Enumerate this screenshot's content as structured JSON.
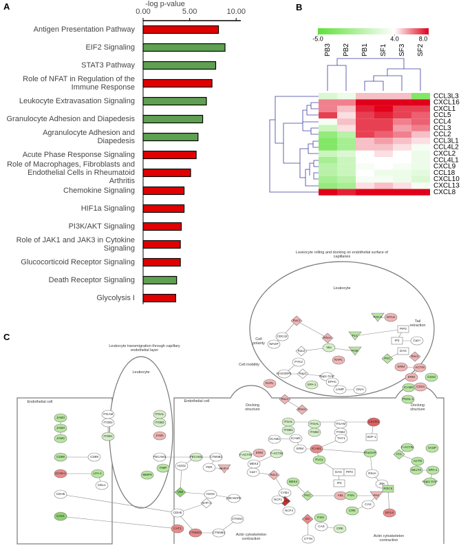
{
  "panel_labels": [
    "A",
    "B",
    "C"
  ],
  "chart_data": [
    {
      "type": "bar",
      "orientation": "horizontal",
      "xlabel": "-log p-value",
      "categories": [
        "Antigen Presentation Pathway",
        "EIF2 Signaling",
        "STAT3 Pathway",
        "Role of NFAT in Regulation of the Immune Response",
        "Leukocyte Extravasation Signaling",
        "Granulocyte Adhesion and Diapedesis",
        "Agranulocyte Adhesion and Diapedesis",
        "Acute Phase Response Signaling",
        "Role of Macrophages, Fibroblasts and Endothelial Cells in Rheumatoid Arthritis",
        "Chemokine Signaling",
        "HIF1a Signaling",
        "PI3K/AKT Signaling",
        "Role of JAK1 and JAK3 in Cytokine Signaling",
        "Glucocorticoid Receptor Signaling",
        "Death Receptor Signaling",
        "Glycolysis I"
      ],
      "values": [
        8.1,
        8.8,
        7.8,
        7.4,
        6.8,
        6.4,
        5.9,
        5.7,
        5.1,
        4.4,
        4.4,
        4.1,
        4.0,
        4.0,
        3.6,
        3.5
      ],
      "colors": [
        "#e00000",
        "#5fa052",
        "#5fa052",
        "#e00000",
        "#5fa052",
        "#5fa052",
        "#5fa052",
        "#e00000",
        "#e00000",
        "#e00000",
        "#e00000",
        "#e00000",
        "#e00000",
        "#e00000",
        "#5fa052",
        "#e00000"
      ],
      "xlim": [
        0,
        10.5
      ],
      "xticks": [
        {
          "value": 0,
          "label": "0.00"
        },
        {
          "value": 5,
          "label": "5.00"
        },
        {
          "value": 10,
          "label": "10.00"
        }
      ]
    },
    {
      "type": "heatmap",
      "x": [
        "PB3",
        "PB2",
        "PB1",
        "SF1",
        "SF3",
        "SF2"
      ],
      "y": [
        "CCL3L3",
        "CXCL16",
        "CXCL1",
        "CCL5",
        "CCL4",
        "CCL3",
        "CCL2",
        "CCL3L1",
        "CCL4L2",
        "CXCL2",
        "CCL4L1",
        "CXCL9",
        "CCL18",
        "CXCL10",
        "CXCL13",
        "CXCL8"
      ],
      "values": [
        [
          2,
          3,
          5,
          5,
          5,
          -3
        ],
        [
          6,
          6,
          8,
          8,
          8,
          8
        ],
        [
          6,
          5,
          7.5,
          8,
          7,
          7
        ],
        [
          7,
          4.5,
          7,
          7.5,
          7,
          6.5
        ],
        [
          3.5,
          5,
          7,
          7,
          6,
          6.5
        ],
        [
          1,
          4.5,
          7,
          7,
          5.5,
          6
        ],
        [
          -2,
          0,
          7,
          6.5,
          6,
          5
        ],
        [
          -3,
          -1,
          5,
          5.5,
          5,
          4.5
        ],
        [
          -3,
          -1,
          5,
          5,
          4.5,
          3.5
        ],
        [
          1,
          2,
          4,
          4.5,
          4,
          3
        ],
        [
          -1,
          1,
          4,
          4,
          4,
          3
        ],
        [
          0,
          1,
          3.5,
          4,
          3.5,
          3
        ],
        [
          0,
          1,
          4,
          3,
          3,
          2.5
        ],
        [
          -1,
          0,
          3.5,
          3.5,
          3,
          2
        ],
        [
          -2,
          -1,
          4.5,
          5,
          4.5,
          3.5
        ],
        [
          8,
          7.5,
          8,
          8,
          8,
          8
        ]
      ],
      "colors": [
        "#5fe03a",
        "#ffffff",
        "#e0001a"
      ],
      "clim": [
        -5,
        8
      ],
      "cticks": [
        {
          "value": -5,
          "label": "-5.0"
        },
        {
          "value": 4,
          "label": "4.0"
        },
        {
          "value": 8,
          "label": "8.0"
        }
      ]
    }
  ],
  "diagram": {
    "texts": [
      "Leukocyte rolling and docking on endothelial surface of capillaries",
      "Leukocyte transmigration through capillary endothelial layer",
      "Leukocyte",
      "Leukocyte",
      "Endothelial cell",
      "Endothelial cell",
      "Docking structure",
      "Docking structure",
      "Cell polarity",
      "Cell mobility",
      "Tail retraction",
      "Actin cytoskeleton contraction",
      "Actin cytoskeleton contraction"
    ],
    "nodes": [
      {
        "label": "JAM3",
        "color": "#b7e6a0"
      },
      {
        "label": "JAM3",
        "color": "#b7e6a0"
      },
      {
        "label": "JAM2",
        "color": "#b7e6a0"
      },
      {
        "label": "ITGAM",
        "color": "#ffffff"
      },
      {
        "label": "ITGB2",
        "color": "#ffffff"
      },
      {
        "label": "ITGB1",
        "color": "#d6f0c8"
      },
      {
        "label": "CD99",
        "color": "#b7e6a0"
      },
      {
        "label": "CD99",
        "color": "#ffffff"
      },
      {
        "label": "ICAM-1",
        "color": "#e98a8a"
      },
      {
        "label": "LFA-1",
        "color": "#b7e6a0"
      },
      {
        "label": "DEL1",
        "color": "#ffffff"
      },
      {
        "label": "CDH5",
        "color": "#ffffff"
      },
      {
        "label": "CAV1",
        "color": "#8fd170"
      },
      {
        "label": "ITGAL",
        "color": "#d6f0c8"
      },
      {
        "label": "ITGB2",
        "color": "#d6f0c8"
      },
      {
        "label": "JAM1",
        "color": "#f0b5b5"
      },
      {
        "label": "PECAM1",
        "color": "#ffffff"
      },
      {
        "label": "TIMP",
        "color": "#b7e6a0"
      },
      {
        "label": "MMP9",
        "color": "#b7e6a0"
      },
      {
        "label": "PECAM1",
        "color": "#d6f0c8"
      },
      {
        "label": "CTNNB1",
        "color": "#ffffff"
      },
      {
        "label": "FER",
        "color": "#ffffff"
      },
      {
        "label": "BHP-2",
        "color": "#f0b5b5"
      },
      {
        "label": "H2O2",
        "color": "#ffffff"
      },
      {
        "label": "VIM",
        "color": "#8fd170"
      },
      {
        "label": "H2O2",
        "color": "#ffffff"
      },
      {
        "label": "SHP-2",
        "color": "#ffffff"
      },
      {
        "label": "p38 MAPK",
        "color": "#ffffff"
      },
      {
        "label": "CDH5",
        "color": "#ffffff"
      },
      {
        "label": "CAT1",
        "color": "#e98a8a"
      },
      {
        "label": "CTNND1",
        "color": "#e98a8a"
      },
      {
        "label": "CTNNB1",
        "color": "#ffffff"
      },
      {
        "label": "CTNNA",
        "color": "#ffffff"
      },
      {
        "label": "Rac1",
        "color": "#f0b5b5"
      },
      {
        "label": "CDC42",
        "color": "#ffffff"
      },
      {
        "label": "RhoA",
        "color": "#f0b5b5"
      },
      {
        "label": "ROCK",
        "color": "#b7e6a0"
      },
      {
        "label": "MYL6",
        "color": "#f0b5b5"
      },
      {
        "label": "PIP2",
        "color": "#ffffff"
      },
      {
        "label": "IP3",
        "color": "#ffffff"
      },
      {
        "label": "Ca2+",
        "color": "#ffffff"
      },
      {
        "label": "PLC",
        "color": "#b7e6a0"
      },
      {
        "label": "DAG",
        "color": "#ffffff"
      },
      {
        "label": "Rac1",
        "color": "#f0b5b5"
      },
      {
        "label": "WASP",
        "color": "#ffffff"
      },
      {
        "label": "Rac2",
        "color": "#ffffff"
      },
      {
        "label": "Vav",
        "color": "#d6f0c8"
      },
      {
        "label": "PI3K",
        "color": "#b7e6a0"
      },
      {
        "label": "PKC",
        "color": "#b7e6a0"
      },
      {
        "label": "PYK2",
        "color": "#ffffff"
      },
      {
        "label": "RAPL",
        "color": "#f0b5b5"
      },
      {
        "label": "RASGRP1",
        "color": "#ffffff"
      },
      {
        "label": "Rap1",
        "color": "#ffffff"
      },
      {
        "label": "Rap1 GAP",
        "color": "#ffffff"
      },
      {
        "label": "EPAC",
        "color": "#ffffff"
      },
      {
        "label": "RAPL",
        "color": "#f0b5b5"
      },
      {
        "label": "SPA-1",
        "color": "#d6f0c8"
      },
      {
        "label": "cAMP",
        "color": "#ffffff"
      },
      {
        "label": "GNAI",
        "color": "#ffffff"
      },
      {
        "label": "ERM",
        "color": "#f0b5b5"
      },
      {
        "label": "ACTIN",
        "color": "#f0b5b5"
      },
      {
        "label": "ERM",
        "color": "#f0b5b5"
      },
      {
        "label": "CD43",
        "color": "#b7e6a0"
      },
      {
        "label": "CD44",
        "color": "#f0b5b5"
      },
      {
        "label": "ICAM3",
        "color": "#b7e6a0"
      },
      {
        "label": "PSGL-1",
        "color": "#b7e6a0"
      },
      {
        "label": "Rac1",
        "color": "#f0b5b5"
      },
      {
        "label": "RhoH",
        "color": "#f0b5b5"
      },
      {
        "label": "ITGAL",
        "color": "#d6f0c8"
      },
      {
        "label": "ITGB1",
        "color": "#d6f0c8"
      },
      {
        "label": "ITGAL",
        "color": "#d6f0c8"
      },
      {
        "label": "ITGB2",
        "color": "#d6f0c8"
      },
      {
        "label": "ITGAM",
        "color": "#ffffff"
      },
      {
        "label": "ITGB2",
        "color": "#ffffff"
      },
      {
        "label": "CXCR4",
        "color": "#e06060"
      },
      {
        "label": "SDF-1",
        "color": "#ffffff"
      },
      {
        "label": "THY1",
        "color": "#ffffff"
      },
      {
        "label": "VCAM1",
        "color": "#ffffff"
      },
      {
        "label": "ICAM1",
        "color": "#ffffff"
      },
      {
        "label": "ERM",
        "color": "#ffffff"
      },
      {
        "label": "ICAM1",
        "color": "#e98a8a"
      },
      {
        "label": "ERM",
        "color": "#f0b5b5"
      },
      {
        "label": "F-ACTIN",
        "color": "#d6f0c8"
      },
      {
        "label": "F-ACTIN",
        "color": "#d6f0c8"
      },
      {
        "label": "MEK3",
        "color": "#ffffff"
      },
      {
        "label": "Ca2+",
        "color": "#ffffff"
      },
      {
        "label": "Rac1",
        "color": "#f0b5b5"
      },
      {
        "label": "PLCγ",
        "color": "#b7e6a0"
      },
      {
        "label": "DAG",
        "color": "#ffffff"
      },
      {
        "label": "PIP2",
        "color": "#ffffff"
      },
      {
        "label": "IP3",
        "color": "#ffffff"
      },
      {
        "label": "MEK4",
        "color": "#b7e6a0"
      },
      {
        "label": "CYBA",
        "color": "#ffffff"
      },
      {
        "label": "NCF2",
        "color": "#c83030"
      },
      {
        "label": "NCF1",
        "color": "#ffffff"
      },
      {
        "label": "NCF4",
        "color": "#ffffff"
      },
      {
        "label": "PKC",
        "color": "#b7e6a0"
      },
      {
        "label": "ABL",
        "color": "#f0b5b5"
      },
      {
        "label": "PXN",
        "color": "#b7e6a0"
      },
      {
        "label": "PAK",
        "color": "#f0b5b5"
      },
      {
        "label": "CAS",
        "color": "#ffffff"
      },
      {
        "label": "CRK",
        "color": "#b7e6a0"
      },
      {
        "label": "PXN",
        "color": "#b7e6a0"
      },
      {
        "label": "CAS",
        "color": "#ffffff"
      },
      {
        "label": "CRK",
        "color": "#d6f0c8"
      },
      {
        "label": "Src",
        "color": "#e98a8a"
      },
      {
        "label": "CTTN",
        "color": "#ffffff"
      },
      {
        "label": "RhoGAP",
        "color": "#b7e6a0"
      },
      {
        "label": "RhoA",
        "color": "#ffffff"
      },
      {
        "label": "JNK",
        "color": "#ffffff"
      },
      {
        "label": "ROCK",
        "color": "#b7e6a0"
      },
      {
        "label": "MYL6",
        "color": "#e98a8a"
      },
      {
        "label": "F-ACTIN",
        "color": "#b7e6a0"
      },
      {
        "label": "VCL",
        "color": "#b7e6a0"
      },
      {
        "label": "VASP",
        "color": "#b7e6a0"
      },
      {
        "label": "ACTN",
        "color": "#b7e6a0"
      },
      {
        "label": "MLLT4",
        "color": "#b7e6a0"
      },
      {
        "label": "SPA-1",
        "color": "#b7e6a0"
      },
      {
        "label": "Rap1 GAP",
        "color": "#b7e6a0"
      }
    ]
  }
}
